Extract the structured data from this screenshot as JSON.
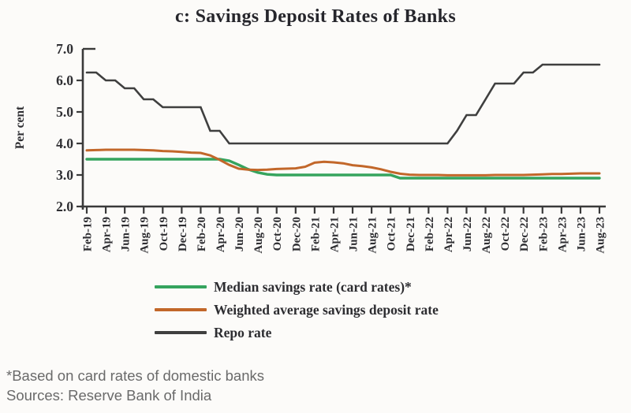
{
  "title": "c: Savings Deposit Rates of Banks",
  "footer": {
    "note": "*Based on card rates of domestic banks",
    "sources": "Sources: Reserve Bank of India"
  },
  "colors": {
    "axis": "#3a3a3a",
    "text": "#2e2e32",
    "background": "#fcfbf9",
    "footer_text": "#6a6a6a"
  },
  "chart_data": {
    "type": "line",
    "title": "c: Savings Deposit Rates of Banks",
    "xlabel": "",
    "ylabel": "Per cent",
    "ylim": [
      2.0,
      7.0
    ],
    "yticks": [
      7.0,
      6.0,
      5.0,
      4.0,
      3.0,
      2.0
    ],
    "ytick_labels": [
      "7.0",
      "6.0",
      "5.0",
      "4.0",
      "3.0",
      "2.0"
    ],
    "grid": false,
    "legend_position": "bottom",
    "x_start_month": "Feb-19",
    "x_end_month": "Aug-23",
    "points_per_label": 2,
    "x_tick_labels": [
      "Feb-19",
      "Apr-19",
      "Jun-19",
      "Aug-19",
      "Oct-19",
      "Dec-19",
      "Feb-20",
      "Apr-20",
      "Jun-20",
      "Aug-20",
      "Oct-20",
      "Dec-20",
      "Feb-21",
      "Apr-21",
      "Jun-21",
      "Aug-21",
      "Oct-21",
      "Dec-21",
      "Feb-22",
      "Apr-22",
      "Jun-22",
      "Aug-22",
      "Oct-22",
      "Dec-22",
      "Feb-23",
      "Apr-23",
      "Jun-23",
      "Aug-23"
    ],
    "series": [
      {
        "name": "Median savings rate (card rates)*",
        "color": "#35a45e",
        "stroke_width": 3.4,
        "values": [
          3.5,
          3.5,
          3.5,
          3.5,
          3.5,
          3.5,
          3.5,
          3.5,
          3.5,
          3.5,
          3.5,
          3.5,
          3.5,
          3.5,
          3.5,
          3.45,
          3.32,
          3.18,
          3.08,
          3.02,
          3.0,
          3.0,
          3.0,
          3.0,
          3.0,
          3.0,
          3.0,
          3.0,
          3.0,
          3.0,
          3.0,
          3.0,
          3.0,
          2.9,
          2.9,
          2.9,
          2.9,
          2.9,
          2.9,
          2.9,
          2.9,
          2.9,
          2.9,
          2.9,
          2.9,
          2.9,
          2.9,
          2.9,
          2.9,
          2.9,
          2.9,
          2.9,
          2.9,
          2.9,
          2.9
        ]
      },
      {
        "name": "Weighted average savings deposit rate",
        "color": "#c2672a",
        "stroke_width": 3.0,
        "values": [
          3.78,
          3.79,
          3.8,
          3.8,
          3.8,
          3.8,
          3.79,
          3.78,
          3.76,
          3.75,
          3.73,
          3.71,
          3.7,
          3.62,
          3.48,
          3.32,
          3.2,
          3.17,
          3.16,
          3.17,
          3.19,
          3.2,
          3.21,
          3.26,
          3.39,
          3.42,
          3.4,
          3.37,
          3.31,
          3.28,
          3.24,
          3.18,
          3.1,
          3.04,
          3.01,
          3.0,
          3.0,
          3.0,
          2.99,
          2.99,
          2.99,
          2.99,
          2.99,
          3.0,
          3.0,
          3.0,
          3.0,
          3.01,
          3.02,
          3.03,
          3.03,
          3.04,
          3.05,
          3.05,
          3.05
        ]
      },
      {
        "name": "Repo rate",
        "color": "#3f3f3f",
        "stroke_width": 2.6,
        "values": [
          6.25,
          6.25,
          6.0,
          6.0,
          5.75,
          5.75,
          5.4,
          5.4,
          5.15,
          5.15,
          5.15,
          5.15,
          5.15,
          4.4,
          4.4,
          4.0,
          4.0,
          4.0,
          4.0,
          4.0,
          4.0,
          4.0,
          4.0,
          4.0,
          4.0,
          4.0,
          4.0,
          4.0,
          4.0,
          4.0,
          4.0,
          4.0,
          4.0,
          4.0,
          4.0,
          4.0,
          4.0,
          4.0,
          4.0,
          4.4,
          4.9,
          4.9,
          5.4,
          5.9,
          5.9,
          5.9,
          6.25,
          6.25,
          6.5,
          6.5,
          6.5,
          6.5,
          6.5,
          6.5,
          6.5
        ]
      }
    ]
  }
}
